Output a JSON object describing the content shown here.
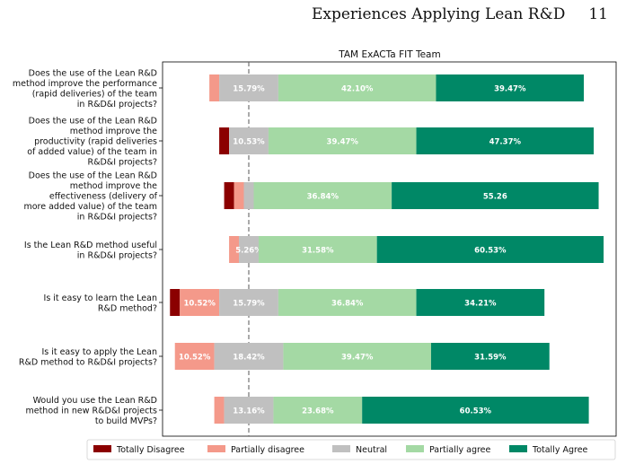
{
  "header": {
    "title": "Experiences Applying Lean R&D",
    "page_number": "11"
  },
  "chart_data": {
    "type": "bar",
    "orientation": "horizontal",
    "stacked": "diverging",
    "title": "TAM ExACTa FIT Team",
    "categories": [
      "Does the use of the Lean R&D method improve the performance (rapid deliveries) of the team in R&D&I projects?",
      "Does the use of the Lean R&D method improve the productivity (rapid deliveries of added value) of the team in R&D&I projects?",
      "Does the use of the Lean R&D method improve the effectiveness (delivery of more added value) of the team in R&D&I projects?",
      "Is the Lean R&D method useful in R&D&I projects?",
      "Is it easy to learn the Lean R&D method?",
      "Is it easy to apply the Lean R&D method to R&D&I projects?",
      "Would you use the Lean R&D method in new R&D&I projects to build MVPs?"
    ],
    "category_lines": [
      [
        "Does the use of the Lean R&D",
        "method improve the performance",
        "(rapid deliveries) of the team",
        "in R&D&I projects?"
      ],
      [
        "Does the use of the Lean R&D",
        "method improve the",
        "productivity (rapid deliveries",
        "of added value) of the team in",
        "R&D&I projects?"
      ],
      [
        "Does the use of the Lean R&D",
        "method improve the",
        "effectiveness (delivery of",
        "more added value) of the team",
        "in R&D&I projects?"
      ],
      [
        "Is the Lean R&D method useful",
        "in R&D&I projects?"
      ],
      [
        "Is it easy to learn the Lean",
        "R&D method?"
      ],
      [
        "Is it easy to apply the Lean",
        "R&D method to R&D&I projects?"
      ],
      [
        "Would you use the Lean R&D",
        "method in new R&D&I projects",
        "to build MVPs?"
      ]
    ],
    "series": [
      {
        "name": "Totally Disagree",
        "color": "#8b0000",
        "values": [
          0,
          2.63,
          2.63,
          0,
          2.63,
          0,
          0
        ]
      },
      {
        "name": "Partially disagree",
        "color": "#f4998a",
        "values": [
          2.63,
          0,
          2.63,
          2.63,
          10.52,
          10.52,
          2.63
        ]
      },
      {
        "name": "Neutral",
        "color": "#c0c0c0",
        "values": [
          15.79,
          10.53,
          2.63,
          5.26,
          15.79,
          18.42,
          13.16
        ]
      },
      {
        "name": "Partially agree",
        "color": "#a4d9a4",
        "values": [
          42.1,
          39.47,
          36.84,
          31.58,
          36.84,
          39.47,
          23.68
        ]
      },
      {
        "name": "Totally Agree",
        "color": "#008866",
        "values": [
          39.47,
          47.37,
          55.26,
          60.53,
          34.21,
          31.59,
          60.53
        ]
      }
    ],
    "value_labels": [
      [
        null,
        null,
        "15.79%",
        "42.10%",
        "39.47%"
      ],
      [
        null,
        null,
        "10.53%",
        "39.47%",
        "47.37%"
      ],
      [
        null,
        null,
        null,
        "36.84%",
        "55.26"
      ],
      [
        null,
        null,
        "5.26%",
        "31.58%",
        "60.53%"
      ],
      [
        null,
        "10.52%",
        "15.79%",
        "36.84%",
        "34.21%"
      ],
      [
        null,
        "10.52%",
        "18.42%",
        "39.47%",
        "31.59%"
      ],
      [
        null,
        null,
        "13.16%",
        "23.68%",
        "60.53%"
      ]
    ],
    "center_line": "dashed at the middle of Neutral",
    "legend_position": "bottom",
    "grid": false
  }
}
